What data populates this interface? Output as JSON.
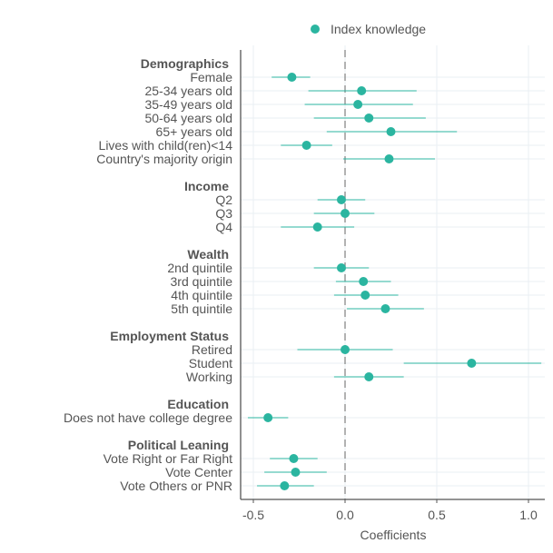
{
  "chart_data": {
    "type": "scatter",
    "subtype": "coefficient-plot-with-confidence-intervals",
    "legend": {
      "label": "Index knowledge",
      "position": "top"
    },
    "xlabel": "Coefficients",
    "xlim": [
      -0.55,
      1.08
    ],
    "xticks": [
      -0.5,
      0.0,
      0.5,
      1.0
    ],
    "xtick_labels": [
      "-0.5",
      "0.0",
      "0.5",
      "1.0"
    ],
    "reference_line": 0.0,
    "colors": {
      "point": "#2bb5a0",
      "errorbar": "#2bb5a0",
      "reference_line": "#888888",
      "grid": "#eaeff3",
      "axis": "#555555"
    },
    "groups": [
      {
        "name": "Demographics",
        "items": [
          {
            "label": "Female",
            "estimate": -0.29,
            "low": -0.4,
            "high": -0.19
          },
          {
            "label": "25-34 years old",
            "estimate": 0.09,
            "low": -0.2,
            "high": 0.39
          },
          {
            "label": "35-49 years old",
            "estimate": 0.07,
            "low": -0.22,
            "high": 0.37
          },
          {
            "label": "50-64 years old",
            "estimate": 0.13,
            "low": -0.17,
            "high": 0.44
          },
          {
            "label": "65+ years old",
            "estimate": 0.25,
            "low": -0.1,
            "high": 0.61
          },
          {
            "label": "Lives with child(ren)<14",
            "estimate": -0.21,
            "low": -0.35,
            "high": -0.07
          },
          {
            "label": "Country's majority origin",
            "estimate": 0.24,
            "low": -0.01,
            "high": 0.49
          }
        ]
      },
      {
        "name": "Income",
        "items": [
          {
            "label": "Q2",
            "estimate": -0.02,
            "low": -0.15,
            "high": 0.11
          },
          {
            "label": "Q3",
            "estimate": 0.0,
            "low": -0.17,
            "high": 0.16
          },
          {
            "label": "Q4",
            "estimate": -0.15,
            "low": -0.35,
            "high": 0.05
          }
        ]
      },
      {
        "name": "Wealth",
        "items": [
          {
            "label": "2nd quintile",
            "estimate": -0.02,
            "low": -0.17,
            "high": 0.13
          },
          {
            "label": "3rd quintile",
            "estimate": 0.1,
            "low": -0.05,
            "high": 0.25
          },
          {
            "label": "4th quintile",
            "estimate": 0.11,
            "low": -0.06,
            "high": 0.29
          },
          {
            "label": "5th quintile",
            "estimate": 0.22,
            "low": 0.01,
            "high": 0.43
          }
        ]
      },
      {
        "name": "Employment Status",
        "items": [
          {
            "label": "Retired",
            "estimate": 0.0,
            "low": -0.26,
            "high": 0.26
          },
          {
            "label": "Student",
            "estimate": 0.69,
            "low": 0.32,
            "high": 1.07
          },
          {
            "label": "Working",
            "estimate": 0.13,
            "low": -0.06,
            "high": 0.32
          }
        ]
      },
      {
        "name": "Education",
        "items": [
          {
            "label": "Does not have college degree",
            "estimate": -0.42,
            "low": -0.53,
            "high": -0.31
          }
        ]
      },
      {
        "name": "Political Leaning",
        "items": [
          {
            "label": "Vote Right or Far Right",
            "estimate": -0.28,
            "low": -0.41,
            "high": -0.15
          },
          {
            "label": "Vote Center",
            "estimate": -0.27,
            "low": -0.44,
            "high": -0.1
          },
          {
            "label": "Vote Others or PNR",
            "estimate": -0.33,
            "low": -0.48,
            "high": -0.17
          }
        ]
      }
    ]
  }
}
